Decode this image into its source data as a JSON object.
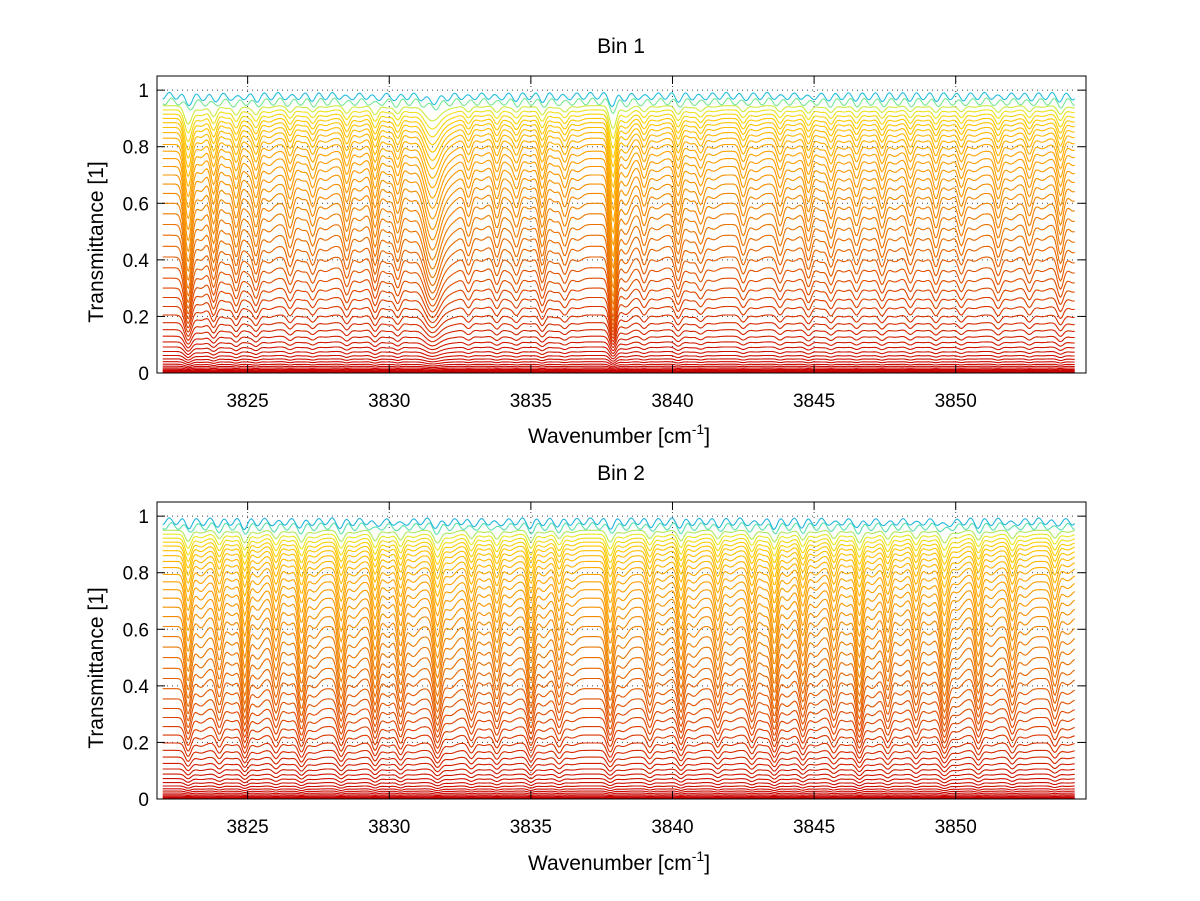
{
  "chart_data": [
    {
      "type": "line",
      "title": "Bin 1",
      "xlabel": "Wavenumber [cm",
      "xlabel_sup": "-1",
      "xlabel_close": "]",
      "ylabel": "Transmittance [1]",
      "xlim": [
        3821.8,
        3854.6
      ],
      "ylim": [
        0,
        1.05
      ],
      "grid": true,
      "x_ticks": [
        3825,
        3830,
        3835,
        3840,
        3845,
        3850
      ],
      "x_tick_labels": [
        "3825",
        "3830",
        "3835",
        "3840",
        "3845",
        "3850"
      ],
      "y_ticks": [
        0,
        0.2,
        0.4,
        0.6,
        0.8,
        1
      ],
      "y_tick_labels": [
        "0",
        "0.2",
        "0.4",
        "0.6",
        "0.8",
        "1"
      ],
      "series_count": 46,
      "series_levels": [
        0.0,
        0.003,
        0.006,
        0.009,
        0.013,
        0.018,
        0.024,
        0.031,
        0.04,
        0.05,
        0.062,
        0.076,
        0.092,
        0.11,
        0.13,
        0.153,
        0.178,
        0.205,
        0.235,
        0.267,
        0.3,
        0.335,
        0.372,
        0.41,
        0.448,
        0.487,
        0.525,
        0.563,
        0.6,
        0.635,
        0.668,
        0.7,
        0.73,
        0.758,
        0.784,
        0.808,
        0.83,
        0.85,
        0.868,
        0.885,
        0.9,
        0.915,
        0.93,
        0.945,
        0.96,
        0.98
      ],
      "absorption_lines": [
        {
          "x": 3822.9,
          "depth": 0.6,
          "width": 0.18
        },
        {
          "x": 3823.8,
          "depth": 0.35,
          "width": 0.15
        },
        {
          "x": 3824.6,
          "depth": 0.3,
          "width": 0.15
        },
        {
          "x": 3825.3,
          "depth": 0.28,
          "width": 0.15
        },
        {
          "x": 3826.5,
          "depth": 0.22,
          "width": 0.15
        },
        {
          "x": 3827.3,
          "depth": 0.2,
          "width": 0.15
        },
        {
          "x": 3828.5,
          "depth": 0.25,
          "width": 0.15
        },
        {
          "x": 3829.5,
          "depth": 0.3,
          "width": 0.15
        },
        {
          "x": 3830.3,
          "depth": 0.26,
          "width": 0.15
        },
        {
          "x": 3831.5,
          "depth": 0.45,
          "width": 0.35
        },
        {
          "x": 3832.8,
          "depth": 0.2,
          "width": 0.15
        },
        {
          "x": 3833.8,
          "depth": 0.22,
          "width": 0.15
        },
        {
          "x": 3834.5,
          "depth": 0.2,
          "width": 0.15
        },
        {
          "x": 3835.4,
          "depth": 0.3,
          "width": 0.15
        },
        {
          "x": 3836.2,
          "depth": 0.2,
          "width": 0.15
        },
        {
          "x": 3837.9,
          "depth": 0.75,
          "width": 0.16
        },
        {
          "x": 3839.0,
          "depth": 0.2,
          "width": 0.15
        },
        {
          "x": 3840.2,
          "depth": 0.28,
          "width": 0.15
        },
        {
          "x": 3841.0,
          "depth": 0.18,
          "width": 0.15
        },
        {
          "x": 3842.5,
          "depth": 0.2,
          "width": 0.15
        },
        {
          "x": 3843.8,
          "depth": 0.2,
          "width": 0.15
        },
        {
          "x": 3844.8,
          "depth": 0.25,
          "width": 0.15
        },
        {
          "x": 3845.6,
          "depth": 0.22,
          "width": 0.15
        },
        {
          "x": 3846.5,
          "depth": 0.2,
          "width": 0.15
        },
        {
          "x": 3847.4,
          "depth": 0.22,
          "width": 0.15
        },
        {
          "x": 3848.4,
          "depth": 0.2,
          "width": 0.15
        },
        {
          "x": 3849.3,
          "depth": 0.22,
          "width": 0.15
        },
        {
          "x": 3850.2,
          "depth": 0.2,
          "width": 0.15
        },
        {
          "x": 3851.5,
          "depth": 0.22,
          "width": 0.15
        },
        {
          "x": 3852.6,
          "depth": 0.2,
          "width": 0.15
        },
        {
          "x": 3853.7,
          "depth": 0.28,
          "width": 0.15
        }
      ]
    },
    {
      "type": "line",
      "title": "Bin 2",
      "xlabel": "Wavenumber [cm",
      "xlabel_sup": "-1",
      "xlabel_close": "]",
      "ylabel": "Transmittance [1]",
      "xlim": [
        3821.8,
        3854.6
      ],
      "ylim": [
        0,
        1.05
      ],
      "grid": true,
      "x_ticks": [
        3825,
        3830,
        3835,
        3840,
        3845,
        3850
      ],
      "x_tick_labels": [
        "3825",
        "3830",
        "3835",
        "3840",
        "3845",
        "3850"
      ],
      "y_ticks": [
        0,
        0.2,
        0.4,
        0.6,
        0.8,
        1
      ],
      "y_tick_labels": [
        "0",
        "0.2",
        "0.4",
        "0.6",
        "0.8",
        "1"
      ],
      "series_count": 46,
      "series_levels": [
        0.0,
        0.003,
        0.006,
        0.01,
        0.015,
        0.021,
        0.028,
        0.036,
        0.046,
        0.058,
        0.072,
        0.088,
        0.106,
        0.126,
        0.148,
        0.172,
        0.198,
        0.226,
        0.256,
        0.288,
        0.32,
        0.354,
        0.39,
        0.426,
        0.462,
        0.5,
        0.537,
        0.574,
        0.61,
        0.645,
        0.678,
        0.71,
        0.74,
        0.768,
        0.794,
        0.818,
        0.84,
        0.86,
        0.878,
        0.894,
        0.908,
        0.922,
        0.936,
        0.95,
        0.965,
        0.982
      ],
      "absorption_lines": [
        {
          "x": 3822.9,
          "depth": 0.4,
          "width": 0.15
        },
        {
          "x": 3824.0,
          "depth": 0.3,
          "width": 0.15
        },
        {
          "x": 3824.9,
          "depth": 0.45,
          "width": 0.15
        },
        {
          "x": 3826.0,
          "depth": 0.3,
          "width": 0.15
        },
        {
          "x": 3826.9,
          "depth": 0.42,
          "width": 0.16
        },
        {
          "x": 3828.3,
          "depth": 0.4,
          "width": 0.16
        },
        {
          "x": 3829.5,
          "depth": 0.38,
          "width": 0.15
        },
        {
          "x": 3830.4,
          "depth": 0.35,
          "width": 0.15
        },
        {
          "x": 3831.7,
          "depth": 0.45,
          "width": 0.18
        },
        {
          "x": 3832.9,
          "depth": 0.3,
          "width": 0.15
        },
        {
          "x": 3833.8,
          "depth": 0.32,
          "width": 0.15
        },
        {
          "x": 3835.0,
          "depth": 0.4,
          "width": 0.15
        },
        {
          "x": 3836.0,
          "depth": 0.3,
          "width": 0.15
        },
        {
          "x": 3837.8,
          "depth": 0.42,
          "width": 0.16
        },
        {
          "x": 3839.2,
          "depth": 0.3,
          "width": 0.15
        },
        {
          "x": 3840.3,
          "depth": 0.38,
          "width": 0.15
        },
        {
          "x": 3841.6,
          "depth": 0.3,
          "width": 0.15
        },
        {
          "x": 3842.8,
          "depth": 0.32,
          "width": 0.15
        },
        {
          "x": 3843.6,
          "depth": 0.42,
          "width": 0.15
        },
        {
          "x": 3844.6,
          "depth": 0.35,
          "width": 0.15
        },
        {
          "x": 3845.7,
          "depth": 0.3,
          "width": 0.15
        },
        {
          "x": 3846.6,
          "depth": 0.45,
          "width": 0.16
        },
        {
          "x": 3847.6,
          "depth": 0.32,
          "width": 0.15
        },
        {
          "x": 3848.6,
          "depth": 0.3,
          "width": 0.15
        },
        {
          "x": 3849.6,
          "depth": 0.45,
          "width": 0.18
        },
        {
          "x": 3850.8,
          "depth": 0.35,
          "width": 0.15
        },
        {
          "x": 3852.0,
          "depth": 0.3,
          "width": 0.15
        },
        {
          "x": 3853.5,
          "depth": 0.28,
          "width": 0.15
        }
      ]
    }
  ]
}
